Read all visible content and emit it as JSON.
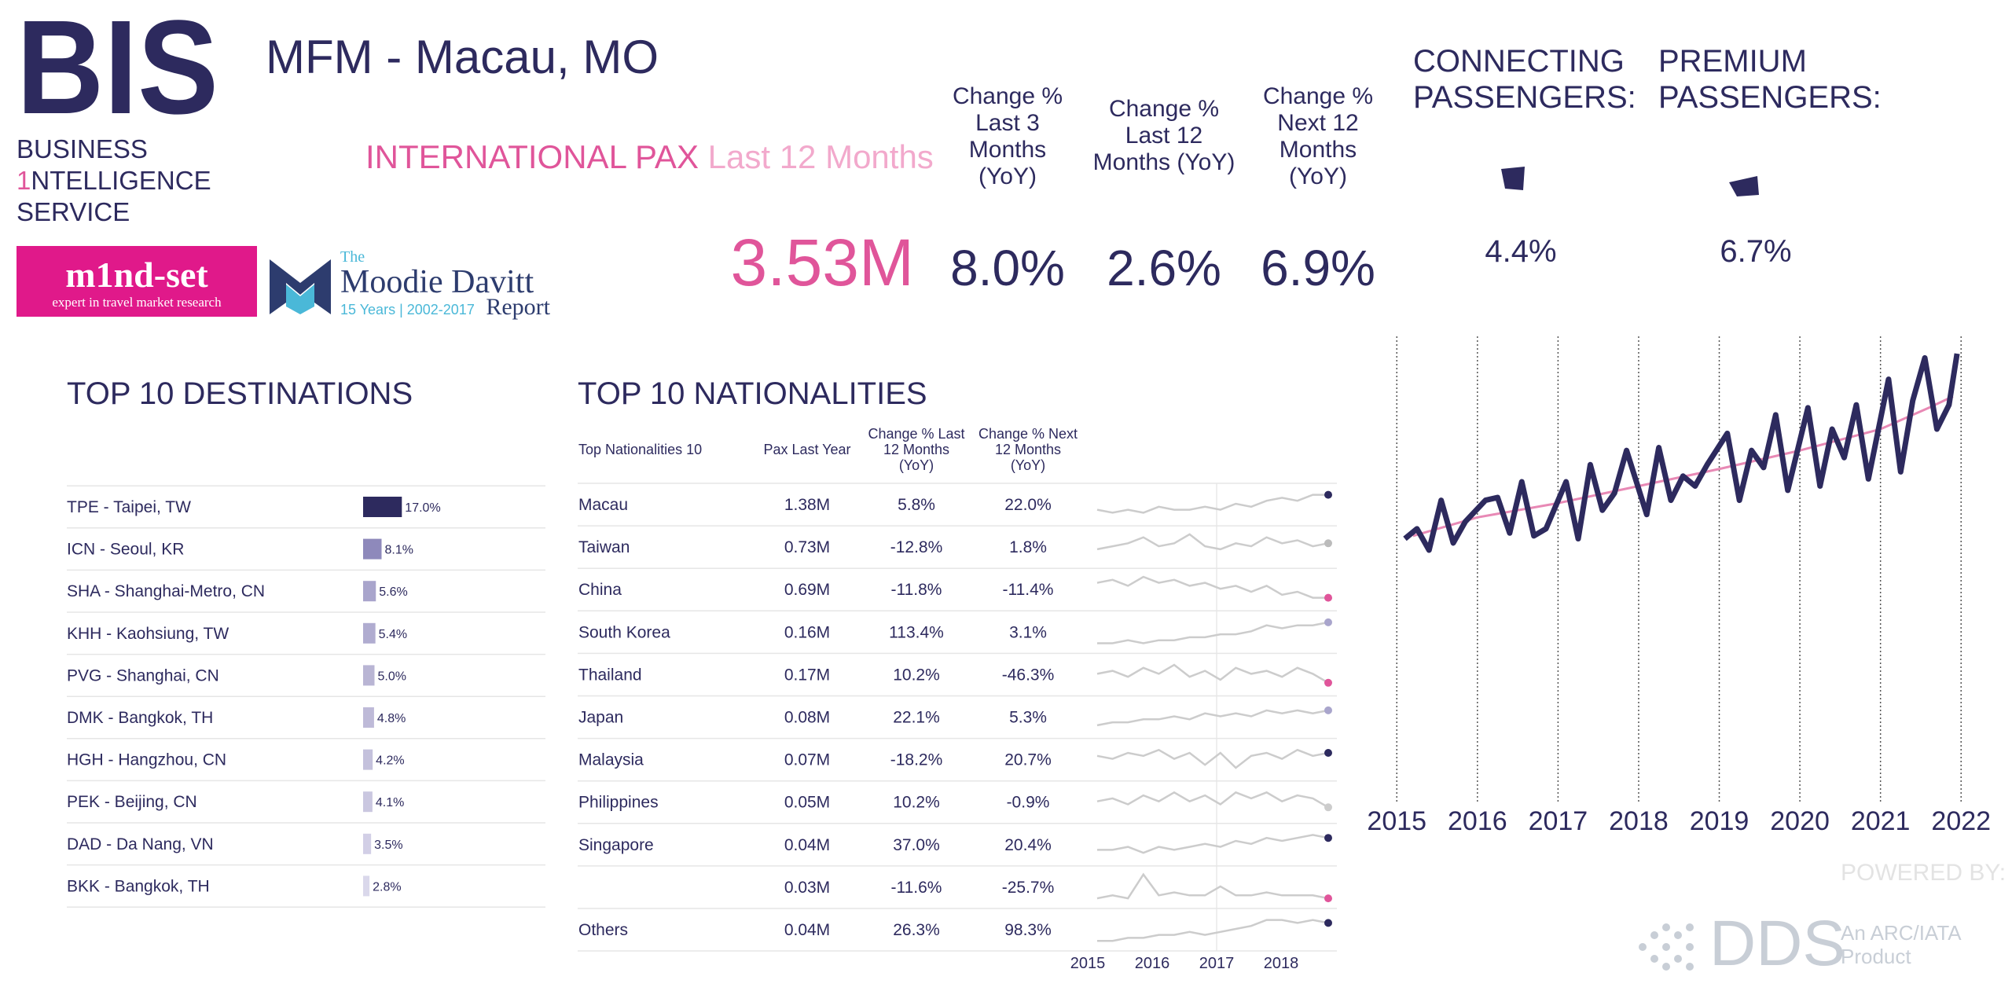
{
  "header": {
    "brand": "BIS",
    "brand_lines": [
      "BUSINESS",
      "1",
      "NTELLIGENCE",
      "SERVICE"
    ],
    "title": "MFM - Macau, MO",
    "metric": "INTERNATIONAL PAX",
    "period": "Last 12 Months",
    "total": "3.53M"
  },
  "partners": {
    "mindset": "m1nd-set",
    "mindset_tagline": "expert in travel market research",
    "moodie": [
      "The",
      "Moodie Davitt",
      "15 Years | 2002-2017",
      "Report"
    ]
  },
  "kpis": [
    {
      "label": [
        "Change %",
        "Last 3",
        "Months",
        "(YoY)"
      ],
      "value": "8.0%"
    },
    {
      "label": [
        "Change %",
        "Last 12",
        "Months (YoY)"
      ],
      "value": "2.6%"
    },
    {
      "label": [
        "Change %",
        "Next 12",
        "Months",
        "(YoY)"
      ],
      "value": "6.9%"
    }
  ],
  "shares": [
    {
      "label": [
        "CONNECTING",
        "PASSENGERS:"
      ],
      "value": "4.4%"
    },
    {
      "label": [
        "PREMIUM",
        "PASSENGERS:"
      ],
      "value": "6.7%"
    }
  ],
  "destinations": {
    "type": "bar",
    "title": "TOP 10 DESTINATIONS",
    "categories": [
      "TPE - Taipei, TW",
      "ICN - Seoul, KR",
      "SHA - Shanghai-Metro, CN",
      "KHH - Kaohsiung, TW",
      "PVG - Shanghai, CN",
      "DMK - Bangkok, TH",
      "HGH - Hangzhou, CN",
      "PEK - Beijing, CN",
      "DAD - Da Nang, VN",
      "BKK - Bangkok, TH"
    ],
    "values": [
      17.0,
      8.1,
      5.6,
      5.4,
      5.0,
      4.8,
      4.2,
      4.1,
      3.5,
      2.8
    ],
    "value_labels": [
      "17.0%",
      "8.1%",
      "5.6%",
      "5.4%",
      "5.0%",
      "4.8%",
      "4.2%",
      "4.1%",
      "3.5%",
      "2.8%"
    ],
    "colors": [
      "#2d2a5e",
      "#8e89bb",
      "#a9a5cc",
      "#b0acd0",
      "#b9b5d4",
      "#bebad8",
      "#c4c1dc",
      "#cac7e0",
      "#d2cfe6",
      "#dad8eb"
    ]
  },
  "nationalities": {
    "title": "TOP 10 NATIONALITIES",
    "columns": [
      [
        "Top Nationalities 10"
      ],
      [
        "Pax Last Year"
      ],
      [
        "Change % Last",
        "12 Months",
        "(YoY)"
      ],
      [
        "Change % Next",
        "12 Months",
        "(YoY)"
      ]
    ],
    "rows": [
      [
        "Macau",
        "1.38M",
        "5.8%",
        "22.0%"
      ],
      [
        "Taiwan",
        "0.73M",
        "-12.8%",
        "1.8%"
      ],
      [
        "China",
        "0.69M",
        "-11.8%",
        "-11.4%"
      ],
      [
        "South Korea",
        "0.16M",
        "113.4%",
        "3.1%"
      ],
      [
        "Thailand",
        "0.17M",
        "10.2%",
        "-46.3%"
      ],
      [
        "Japan",
        "0.08M",
        "22.1%",
        "5.3%"
      ],
      [
        "Malaysia",
        "0.07M",
        "-18.2%",
        "20.7%"
      ],
      [
        "Philippines",
        "0.05M",
        "10.2%",
        "-0.9%"
      ],
      [
        "Singapore",
        "0.04M",
        "37.0%",
        "20.4%"
      ],
      [
        null,
        "0.03M",
        "-11.6%",
        "-25.7%"
      ],
      [
        "Others",
        "0.04M",
        "26.3%",
        "98.3%"
      ]
    ],
    "trend_ticks": [
      2015,
      2016,
      2017,
      2018
    ],
    "trends": [
      [
        3,
        2,
        3,
        2,
        4,
        3,
        3,
        4,
        3,
        5,
        4,
        6,
        7,
        6,
        8,
        8
      ],
      [
        4,
        5,
        6,
        8,
        5,
        6,
        9,
        5,
        4,
        6,
        5,
        8,
        6,
        7,
        5,
        6
      ],
      [
        7,
        8,
        6,
        9,
        7,
        8,
        6,
        7,
        5,
        6,
        4,
        6,
        3,
        4,
        2,
        2
      ],
      [
        1,
        1,
        2,
        1,
        2,
        2,
        3,
        3,
        4,
        4,
        5,
        7,
        6,
        7,
        7,
        8
      ],
      [
        5,
        6,
        4,
        7,
        5,
        8,
        4,
        6,
        3,
        7,
        5,
        6,
        4,
        7,
        5,
        2
      ],
      [
        2,
        3,
        3,
        4,
        4,
        5,
        4,
        6,
        5,
        6,
        5,
        7,
        6,
        7,
        6,
        7
      ],
      [
        6,
        5,
        7,
        6,
        8,
        5,
        7,
        3,
        7,
        2,
        6,
        7,
        5,
        8,
        6,
        7
      ],
      [
        5,
        6,
        4,
        7,
        5,
        8,
        5,
        7,
        4,
        8,
        6,
        8,
        5,
        7,
        6,
        3
      ],
      [
        3,
        3,
        4,
        2,
        4,
        3,
        4,
        5,
        4,
        6,
        5,
        7,
        6,
        7,
        8,
        7
      ],
      [
        1,
        2,
        1,
        9,
        2,
        3,
        2,
        2,
        5,
        2,
        2,
        3,
        2,
        2,
        2,
        1
      ],
      [
        1,
        1,
        2,
        2,
        3,
        3,
        4,
        3,
        4,
        5,
        6,
        8,
        8,
        7,
        8,
        7
      ]
    ],
    "trend_colors": [
      "#2d2a5e",
      "#bbbbbb",
      "#e0559a",
      "#a9a5cc",
      "#e0559a",
      "#a9a5cc",
      "#2d2a5e",
      "#cccccc",
      "#2d2a5e",
      "#e0559a",
      "#2d2a5e"
    ]
  },
  "chart_data": {
    "type": "line",
    "xlim": [
      2014.9,
      2022.3
    ],
    "xticks": [
      2015,
      2016,
      2017,
      2018,
      2019,
      2020,
      2021,
      2022
    ],
    "series": [
      {
        "color": "#2d2a5e",
        "x": [
          2015.1,
          2015.25,
          2015.4,
          2015.55,
          2015.7,
          2015.85,
          2016.1,
          2016.25,
          2016.4,
          2016.55,
          2016.7,
          2016.85,
          2017.1,
          2017.25,
          2017.4,
          2017.55,
          2017.7,
          2017.85,
          2018.1,
          2018.25,
          2018.4,
          2018.55,
          2018.7,
          2018.85,
          2019.1,
          2019.25,
          2019.4,
          2019.55,
          2019.7,
          2019.85,
          2020.1,
          2020.25,
          2020.4,
          2020.55,
          2020.7,
          2020.85,
          2021.1,
          2021.25,
          2021.4,
          2021.55,
          2021.7,
          2021.85,
          2021.95
        ],
        "values": [
          213,
          220,
          205,
          240,
          210,
          225,
          240,
          242,
          217,
          253,
          215,
          220,
          253,
          213,
          265,
          233,
          245,
          275,
          230,
          277,
          240,
          257,
          250,
          265,
          287,
          240,
          275,
          263,
          300,
          247,
          305,
          250,
          290,
          270,
          307,
          255,
          325,
          260,
          310,
          340,
          290,
          307,
          343
        ]
      },
      {
        "color": "#e889b5",
        "x": [
          2015.2,
          2016,
          2017,
          2018,
          2019,
          2020,
          2021,
          2021.6,
          2021.9
        ],
        "values": [
          215,
          228,
          238,
          250,
          262,
          275,
          290,
          305,
          313
        ]
      }
    ]
  }
}
